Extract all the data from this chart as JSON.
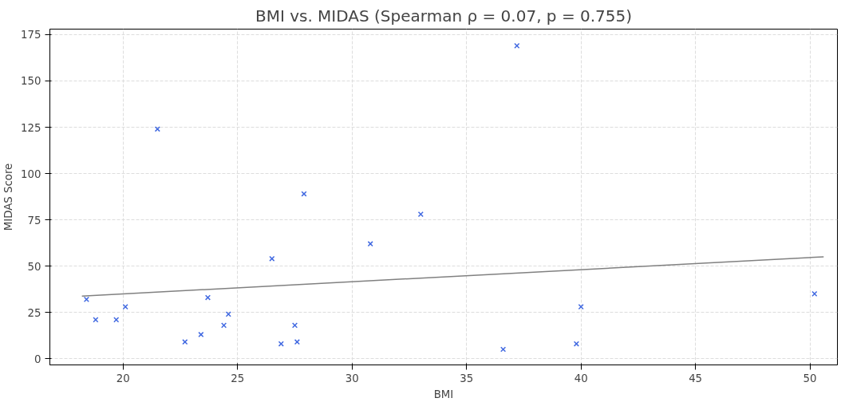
{
  "chart_data": {
    "type": "scatter",
    "title": "BMI vs. MIDAS (Spearman ρ = 0.07, p = 0.755)",
    "xlabel": "BMI",
    "ylabel": "MIDAS Score",
    "xlim": [
      16.8,
      51.2
    ],
    "ylim": [
      -3.4,
      178
    ],
    "xticks": [
      20,
      25,
      30,
      35,
      40,
      45,
      50
    ],
    "yticks": [
      0,
      25,
      50,
      75,
      100,
      125,
      150,
      175
    ],
    "grid": true,
    "series": [
      {
        "marker": "cross",
        "color": "#4169e1",
        "x": [
          18.4,
          18.8,
          19.7,
          20.1,
          21.5,
          22.7,
          23.4,
          23.7,
          24.4,
          24.6,
          26.5,
          26.9,
          27.5,
          27.6,
          27.9,
          30.8,
          33.0,
          36.6,
          37.2,
          39.8,
          40.0,
          50.2
        ],
        "values": [
          32,
          21,
          21,
          28,
          124,
          9,
          13,
          33,
          18,
          24,
          54,
          8,
          18,
          9,
          89,
          62,
          78,
          5,
          169,
          8,
          28,
          35
        ]
      },
      {
        "type": "line",
        "marker": "none",
        "color": "#808080",
        "x": [
          18.2,
          50.6
        ],
        "values": [
          33.8,
          55
        ]
      }
    ]
  }
}
